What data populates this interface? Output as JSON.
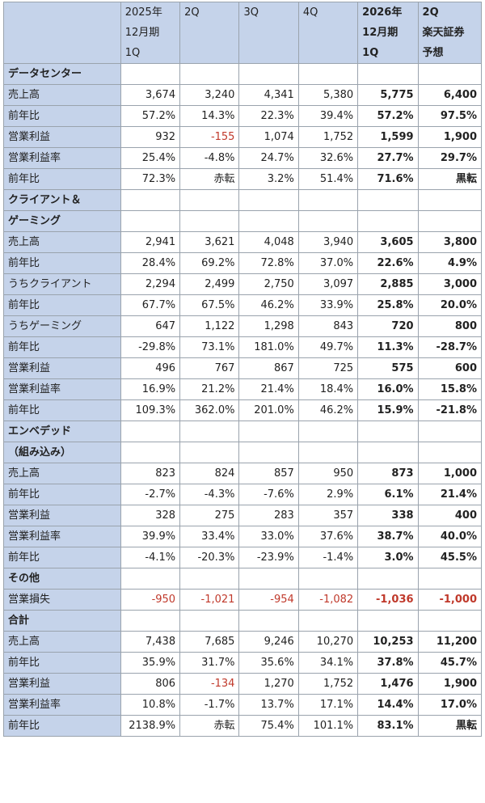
{
  "header": [
    [
      "",
      "",
      ""
    ],
    [
      "2025年",
      "12月期",
      "1Q"
    ],
    [
      "",
      "2Q",
      ""
    ],
    [
      "",
      "3Q",
      ""
    ],
    [
      "",
      "4Q",
      ""
    ],
    [
      "2026年",
      "12月期",
      "1Q"
    ],
    [
      "2Q",
      "楽天証券",
      "予想"
    ]
  ],
  "sections": [
    {
      "title": "データセンター",
      "rows": [
        {
          "label": "売上高",
          "values": [
            "3,674",
            "3,240",
            "4,341",
            "5,380",
            "5,775",
            "6,400"
          ]
        },
        {
          "label": "前年比",
          "values": [
            "57.2%",
            "14.3%",
            "22.3%",
            "39.4%",
            "57.2%",
            "97.5%"
          ]
        },
        {
          "label": "営業利益",
          "group_start": true,
          "values": [
            "932",
            "-155",
            "1,074",
            "1,752",
            "1,599",
            "1,900"
          ],
          "neg": [
            false,
            true,
            false,
            false,
            false,
            false
          ]
        },
        {
          "label": "営業利益率",
          "values": [
            "25.4%",
            "-4.8%",
            "24.7%",
            "32.6%",
            "27.7%",
            "29.7%"
          ]
        },
        {
          "label": "前年比",
          "values": [
            "72.3%",
            "赤転",
            "3.2%",
            "51.4%",
            "71.6%",
            "黒転"
          ]
        }
      ]
    },
    {
      "title": "クライアント＆",
      "title2": "ゲーミング",
      "rows": [
        {
          "label": "売上高",
          "values": [
            "2,941",
            "3,621",
            "4,048",
            "3,940",
            "3,605",
            "3,800"
          ]
        },
        {
          "label": "前年比",
          "values": [
            "28.4%",
            "69.2%",
            "72.8%",
            "37.0%",
            "22.6%",
            "4.9%"
          ]
        },
        {
          "label": "うちクライアント",
          "group_start": true,
          "values": [
            "2,294",
            "2,499",
            "2,750",
            "3,097",
            "2,885",
            "3,000"
          ]
        },
        {
          "label": "前年比",
          "values": [
            "67.7%",
            "67.5%",
            "46.2%",
            "33.9%",
            "25.8%",
            "20.0%"
          ]
        },
        {
          "label": "うちゲーミング",
          "values": [
            "647",
            "1,122",
            "1,298",
            "843",
            "720",
            "800"
          ]
        },
        {
          "label": "前年比",
          "values": [
            "-29.8%",
            "73.1%",
            "181.0%",
            "49.7%",
            "11.3%",
            "-28.7%"
          ]
        },
        {
          "label": "営業利益",
          "group_start": true,
          "values": [
            "496",
            "767",
            "867",
            "725",
            "575",
            "600"
          ]
        },
        {
          "label": "営業利益率",
          "values": [
            "16.9%",
            "21.2%",
            "21.4%",
            "18.4%",
            "16.0%",
            "15.8%"
          ]
        },
        {
          "label": "前年比",
          "values": [
            "109.3%",
            "362.0%",
            "201.0%",
            "46.2%",
            "15.9%",
            "-21.8%"
          ]
        }
      ]
    },
    {
      "title": "エンベデッド",
      "title2": "（組み込み）",
      "rows": [
        {
          "label": "売上高",
          "values": [
            "823",
            "824",
            "857",
            "950",
            "873",
            "1,000"
          ]
        },
        {
          "label": "前年比",
          "values": [
            "-2.7%",
            "-4.3%",
            "-7.6%",
            "2.9%",
            "6.1%",
            "21.4%"
          ]
        },
        {
          "label": "営業利益",
          "group_start": true,
          "values": [
            "328",
            "275",
            "283",
            "357",
            "338",
            "400"
          ]
        },
        {
          "label": "営業利益率",
          "values": [
            "39.9%",
            "33.4%",
            "33.0%",
            "37.6%",
            "38.7%",
            "40.0%"
          ]
        },
        {
          "label": "前年比",
          "values": [
            "-4.1%",
            "-20.3%",
            "-23.9%",
            "-1.4%",
            "3.0%",
            "45.5%"
          ]
        }
      ]
    },
    {
      "title": "その他",
      "rows": [
        {
          "label": "営業損失",
          "values": [
            "-950",
            "-1,021",
            "-954",
            "-1,082",
            "-1,036",
            "-1,000"
          ],
          "neg": [
            true,
            true,
            true,
            true,
            true,
            true
          ]
        }
      ]
    },
    {
      "title": "合計",
      "rows": [
        {
          "label": "売上高",
          "values": [
            "7,438",
            "7,685",
            "9,246",
            "10,270",
            "10,253",
            "11,200"
          ]
        },
        {
          "label": "前年比",
          "values": [
            "35.9%",
            "31.7%",
            "35.6%",
            "34.1%",
            "37.8%",
            "45.7%"
          ]
        },
        {
          "label": "営業利益",
          "group_start": true,
          "values": [
            "806",
            "-134",
            "1,270",
            "1,752",
            "1,476",
            "1,900"
          ],
          "neg": [
            false,
            true,
            false,
            false,
            false,
            false
          ]
        },
        {
          "label": "営業利益率",
          "values": [
            "10.8%",
            "-1.7%",
            "13.7%",
            "17.1%",
            "14.4%",
            "17.0%"
          ]
        },
        {
          "label": "前年比",
          "values": [
            "2138.9%",
            "赤転",
            "75.4%",
            "101.1%",
            "83.1%",
            "黒転"
          ]
        }
      ]
    }
  ]
}
